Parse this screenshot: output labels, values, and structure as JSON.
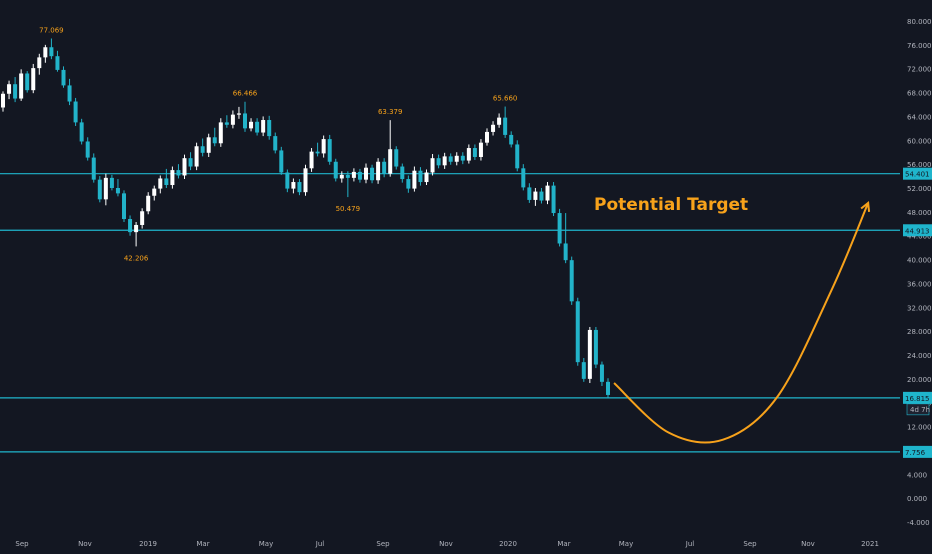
{
  "colors": {
    "background": "#131722",
    "up": "#ffffff",
    "down": "#22b3c9",
    "level_line": "#1fb5cc",
    "annotation": "#f7a21b",
    "axis_text": "#b2b5be",
    "price_label_text": "#131722"
  },
  "annotation": {
    "text": "Potential Target"
  },
  "levels": [
    {
      "label": "54.401",
      "value": 54.401
    },
    {
      "label": "44.913",
      "value": 44.913
    },
    {
      "label": "16.815",
      "value": 16.815
    },
    {
      "label": "7.756",
      "value": 7.756
    }
  ],
  "countdown_label": "4d 7h",
  "chart_data": {
    "type": "candlestick",
    "title": "",
    "xlabel": "",
    "ylabel": "",
    "ylim": [
      -6,
      82
    ],
    "y_ticks": [
      "80.000",
      "76.000",
      "72.000",
      "68.000",
      "64.000",
      "60.000",
      "56.000",
      "52.000",
      "48.000",
      "44.000",
      "40.000",
      "36.000",
      "32.000",
      "28.000",
      "24.000",
      "20.000",
      "16.000",
      "12.000",
      "8.000",
      "4.000",
      "0.000",
      "-4.000"
    ],
    "x_ticks": [
      "Sep",
      "Nov",
      "2019",
      "Mar",
      "May",
      "Jul",
      "Sep",
      "Nov",
      "2020",
      "Mar",
      "May",
      "Jul",
      "Sep",
      "Nov",
      "2021"
    ],
    "peak_labels": [
      {
        "text": "77.069",
        "index": 8,
        "value": 77.069,
        "position": "above"
      },
      {
        "text": "42.206",
        "index": 22,
        "value": 42.206,
        "position": "below"
      },
      {
        "text": "66.466",
        "index": 40,
        "value": 66.466,
        "position": "above"
      },
      {
        "text": "50.479",
        "index": 57,
        "value": 50.479,
        "position": "below"
      },
      {
        "text": "63.379",
        "index": 64,
        "value": 63.379,
        "position": "above"
      },
      {
        "text": "65.660",
        "index": 83,
        "value": 65.66,
        "position": "above"
      }
    ],
    "candles": [
      [
        65.5,
        68.2,
        64.8,
        67.8
      ],
      [
        67.8,
        70.0,
        66.9,
        69.4
      ],
      [
        69.4,
        70.6,
        66.4,
        67.0
      ],
      [
        67.0,
        71.9,
        66.6,
        71.2
      ],
      [
        71.2,
        71.6,
        68.0,
        68.4
      ],
      [
        68.4,
        72.8,
        67.9,
        72.1
      ],
      [
        72.1,
        74.5,
        71.0,
        73.9
      ],
      [
        73.9,
        76.0,
        73.0,
        75.6
      ],
      [
        75.6,
        77.069,
        73.6,
        74.1
      ],
      [
        74.1,
        75.0,
        71.5,
        71.8
      ],
      [
        71.8,
        72.4,
        68.8,
        69.2
      ],
      [
        69.2,
        70.3,
        65.9,
        66.5
      ],
      [
        66.5,
        67.1,
        62.4,
        63.0
      ],
      [
        63.0,
        63.6,
        59.3,
        59.8
      ],
      [
        59.8,
        60.5,
        56.6,
        57.1
      ],
      [
        57.1,
        57.8,
        52.9,
        53.4
      ],
      [
        53.4,
        54.0,
        49.6,
        50.1
      ],
      [
        50.1,
        54.4,
        49.1,
        53.7
      ],
      [
        53.7,
        54.2,
        51.6,
        52.0
      ],
      [
        52.0,
        53.5,
        50.6,
        51.1
      ],
      [
        51.1,
        51.6,
        46.3,
        46.8
      ],
      [
        46.8,
        47.4,
        44.0,
        44.6
      ],
      [
        44.6,
        46.3,
        42.206,
        45.8
      ],
      [
        45.8,
        48.6,
        45.2,
        48.1
      ],
      [
        48.1,
        51.3,
        47.6,
        50.7
      ],
      [
        50.7,
        52.4,
        49.9,
        51.9
      ],
      [
        51.9,
        54.1,
        51.1,
        53.6
      ],
      [
        53.6,
        55.2,
        52.0,
        52.5
      ],
      [
        52.5,
        55.6,
        51.9,
        55.0
      ],
      [
        55.0,
        56.0,
        53.6,
        54.1
      ],
      [
        54.1,
        57.6,
        53.5,
        57.0
      ],
      [
        57.0,
        58.0,
        55.0,
        55.6
      ],
      [
        55.6,
        59.6,
        55.0,
        59.0
      ],
      [
        59.0,
        60.3,
        57.3,
        57.9
      ],
      [
        57.9,
        61.1,
        57.2,
        60.5
      ],
      [
        60.5,
        62.1,
        59.0,
        59.5
      ],
      [
        59.5,
        63.7,
        58.9,
        63.0
      ],
      [
        63.0,
        64.2,
        62.1,
        62.6
      ],
      [
        62.6,
        65.0,
        62.0,
        64.3
      ],
      [
        64.3,
        65.6,
        63.6,
        64.5
      ],
      [
        64.5,
        66.466,
        61.4,
        62.0
      ],
      [
        62.0,
        63.7,
        61.5,
        63.1
      ],
      [
        63.1,
        63.7,
        60.8,
        61.3
      ],
      [
        61.3,
        64.0,
        60.7,
        63.4
      ],
      [
        63.4,
        64.1,
        60.1,
        60.7
      ],
      [
        60.7,
        61.3,
        57.8,
        58.3
      ],
      [
        58.3,
        58.9,
        54.2,
        54.6
      ],
      [
        54.6,
        55.1,
        51.3,
        51.9
      ],
      [
        51.9,
        53.6,
        51.1,
        53.0
      ],
      [
        53.0,
        53.5,
        50.8,
        51.3
      ],
      [
        51.3,
        55.9,
        50.7,
        55.3
      ],
      [
        55.3,
        58.7,
        54.7,
        58.1
      ],
      [
        58.1,
        59.6,
        57.3,
        57.8
      ],
      [
        57.8,
        60.8,
        57.1,
        60.2
      ],
      [
        60.2,
        60.9,
        55.9,
        56.4
      ],
      [
        56.4,
        56.9,
        53.1,
        53.6
      ],
      [
        53.6,
        54.8,
        52.9,
        54.2
      ],
      [
        54.2,
        54.8,
        50.479,
        53.7
      ],
      [
        53.7,
        55.3,
        53.1,
        54.7
      ],
      [
        54.7,
        55.2,
        52.9,
        53.4
      ],
      [
        53.4,
        56.1,
        52.8,
        55.4
      ],
      [
        55.4,
        55.9,
        52.8,
        53.3
      ],
      [
        53.3,
        57.0,
        52.7,
        56.4
      ],
      [
        56.4,
        57.0,
        53.8,
        54.4
      ],
      [
        54.4,
        63.379,
        53.9,
        58.5
      ],
      [
        58.5,
        59.0,
        55.1,
        55.6
      ],
      [
        55.6,
        56.1,
        52.9,
        53.5
      ],
      [
        53.5,
        54.1,
        51.2,
        51.9
      ],
      [
        51.9,
        55.6,
        51.4,
        54.9
      ],
      [
        54.9,
        55.5,
        52.4,
        53.0
      ],
      [
        53.0,
        55.1,
        52.5,
        54.6
      ],
      [
        54.6,
        57.7,
        54.1,
        57.0
      ],
      [
        57.0,
        57.6,
        55.3,
        55.8
      ],
      [
        55.8,
        57.9,
        55.2,
        57.3
      ],
      [
        57.3,
        57.8,
        55.9,
        56.4
      ],
      [
        56.4,
        58.0,
        55.8,
        57.4
      ],
      [
        57.4,
        58.0,
        56.0,
        56.6
      ],
      [
        56.6,
        59.3,
        56.1,
        58.7
      ],
      [
        58.7,
        59.3,
        56.7,
        57.2
      ],
      [
        57.2,
        60.2,
        56.6,
        59.6
      ],
      [
        59.6,
        62.0,
        59.1,
        61.4
      ],
      [
        61.4,
        63.2,
        60.8,
        62.6
      ],
      [
        62.6,
        64.5,
        62.1,
        63.8
      ],
      [
        63.8,
        65.66,
        60.4,
        60.9
      ],
      [
        60.9,
        61.5,
        58.8,
        59.3
      ],
      [
        59.3,
        60.0,
        54.8,
        55.3
      ],
      [
        55.3,
        56.0,
        51.6,
        52.1
      ],
      [
        52.1,
        52.8,
        49.5,
        50.0
      ],
      [
        50.0,
        52.0,
        49.0,
        51.4
      ],
      [
        51.4,
        52.0,
        49.4,
        49.9
      ],
      [
        49.9,
        53.0,
        49.3,
        52.4
      ],
      [
        52.4,
        53.0,
        47.3,
        47.8
      ],
      [
        47.8,
        48.5,
        42.2,
        42.7
      ],
      [
        42.7,
        47.8,
        39.4,
        39.9
      ],
      [
        39.9,
        40.5,
        32.4,
        33.0
      ],
      [
        33.0,
        33.6,
        22.2,
        22.8
      ],
      [
        22.8,
        23.5,
        19.5,
        20.0
      ],
      [
        20.0,
        28.7,
        19.3,
        28.2
      ],
      [
        28.2,
        28.7,
        21.8,
        22.4
      ],
      [
        22.4,
        22.9,
        18.8,
        19.5
      ],
      [
        19.5,
        20.1,
        16.7,
        17.3
      ]
    ],
    "projection": {
      "description_points": [
        {
          "index": 101,
          "value": 19.3
        },
        {
          "index": 110,
          "value": 11.0
        },
        {
          "index": 119,
          "value": 9.8
        },
        {
          "index": 128,
          "value": 17.0
        },
        {
          "index": 137,
          "value": 35.0
        },
        {
          "index": 143,
          "value": 49.5
        }
      ]
    }
  }
}
